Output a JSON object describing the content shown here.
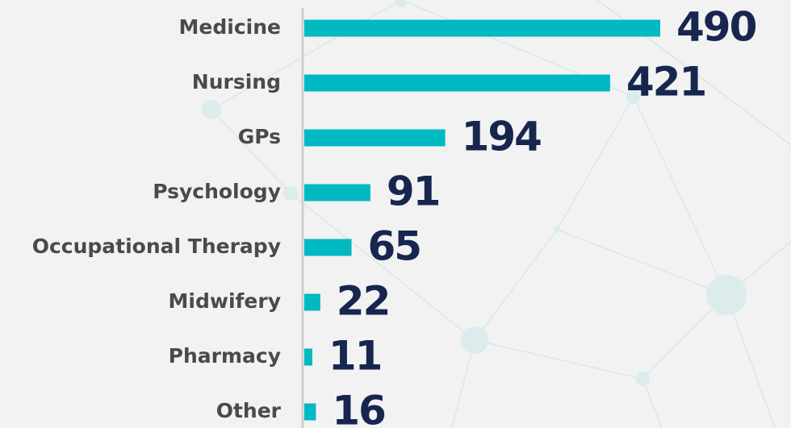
{
  "chart_data": {
    "type": "bar",
    "orientation": "horizontal",
    "categories": [
      "Medicine",
      "Nursing",
      "GPs",
      "Psychology",
      "Occupational Therapy",
      "Midwifery",
      "Pharmacy",
      "Other"
    ],
    "values": [
      490,
      421,
      194,
      91,
      65,
      22,
      11,
      16
    ],
    "color": "#00b9c2"
  }
}
